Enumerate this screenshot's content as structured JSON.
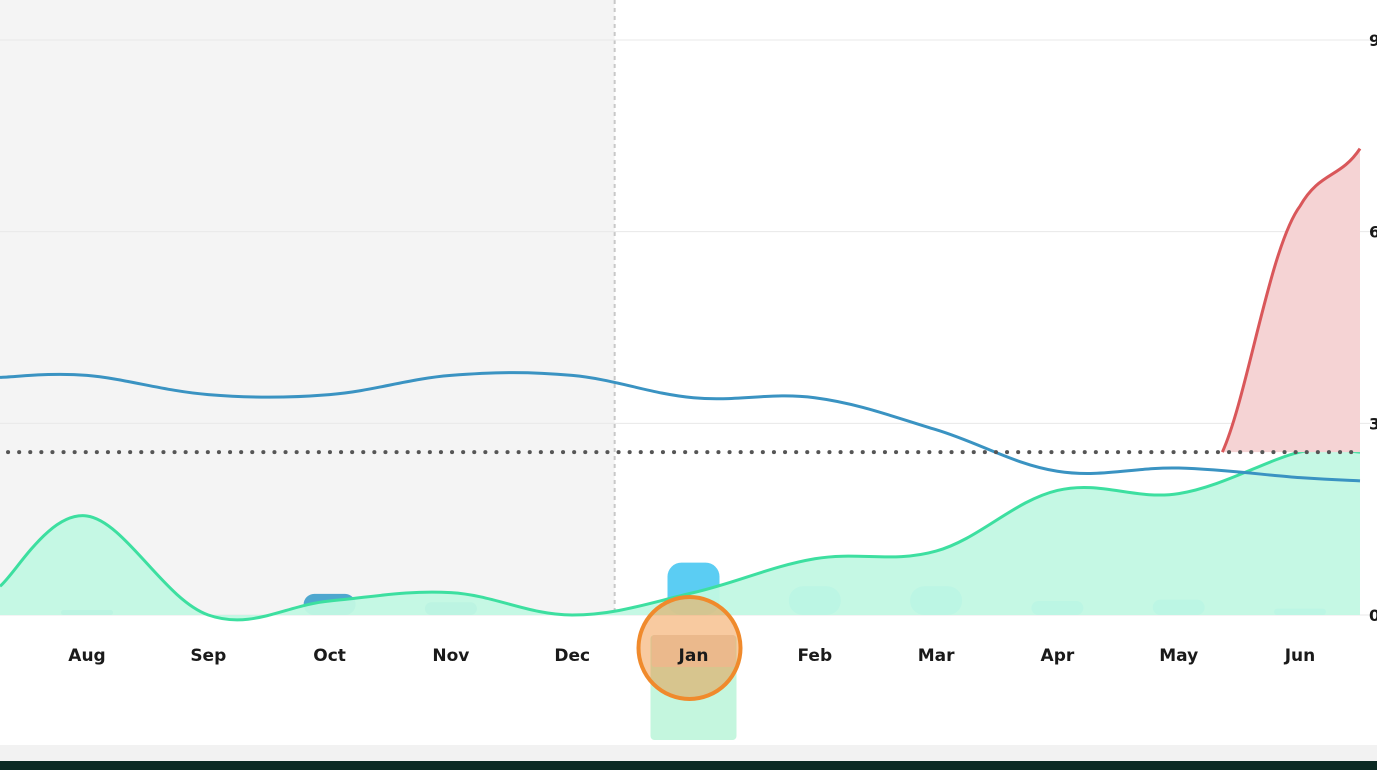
{
  "chart_data": {
    "type": "line",
    "categories": [
      "Aug",
      "Sep",
      "Oct",
      "Nov",
      "Dec",
      "Jan",
      "Feb",
      "Mar",
      "Apr",
      "May",
      "Jun"
    ],
    "y_ticks": [
      "9",
      "6",
      "3",
      "0"
    ],
    "ylim": [
      0,
      9
    ],
    "threshold": 2.55,
    "selected_category": "Jan",
    "series": [
      {
        "key": "blue_line",
        "values": [
          3.75,
          3.45,
          3.45,
          3.75,
          3.75,
          3.4,
          3.4,
          2.9,
          2.25,
          2.3,
          2.15
        ]
      },
      {
        "key": "green_area",
        "values": [
          1.55,
          0.0,
          0.22,
          0.35,
          0.0,
          0.35,
          0.88,
          1.0,
          1.95,
          1.9,
          2.55
        ]
      },
      {
        "key": "red_area",
        "values": [
          null,
          null,
          null,
          null,
          null,
          null,
          null,
          null,
          null,
          null,
          6.4
        ]
      },
      {
        "key": "blue_bars",
        "values": [
          0.07,
          0.0,
          0.33,
          0.2,
          0.0,
          0.82,
          0.45,
          0.45,
          0.22,
          0.24,
          0.1
        ]
      }
    ],
    "colors": {
      "blue_line": "#3a93c2",
      "green_line": "#3ddfa0",
      "green_fill": "#c2f8e3",
      "red_line": "#d9575a",
      "red_fill": "#f5d3d4",
      "bar": "#5bcdf3",
      "bar_past": "#4ea7cf",
      "past_bg": "#f4f4f4",
      "threshold": "#555555",
      "highlight_ring": "#f08a2c"
    },
    "past_region_through": "Dec",
    "grid": true
  }
}
